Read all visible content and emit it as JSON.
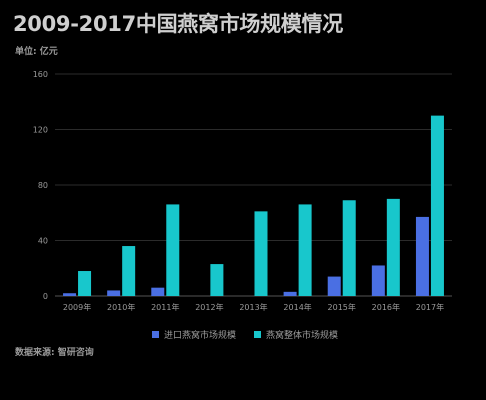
{
  "colors": {
    "background": "#000000",
    "series_1": "#4a6fe3",
    "series_2": "#18c7cc",
    "axis_text": "#9a9a9a",
    "grid": "#2b2b2b"
  },
  "chart_data": {
    "type": "bar",
    "title": "2009-2017中国燕窝市场规模情况",
    "unit_label": "单位: 亿元",
    "categories": [
      "2009年",
      "2010年",
      "2011年",
      "2012年",
      "2013年",
      "2014年",
      "2015年",
      "2016年",
      "2017年"
    ],
    "series": [
      {
        "name": "进口燕窝市场规模",
        "values": [
          2,
          4,
          6,
          0,
          0,
          3,
          14,
          22,
          57
        ]
      },
      {
        "name": "燕窝整体市场规模",
        "values": [
          18,
          36,
          66,
          23,
          61,
          66,
          69,
          70,
          130
        ]
      }
    ],
    "ylim": [
      0,
      160
    ],
    "yticks": [
      0,
      40,
      80,
      120,
      160
    ],
    "grid": true,
    "legend_position": "bottom",
    "source": "数据来源: 智研咨询"
  }
}
